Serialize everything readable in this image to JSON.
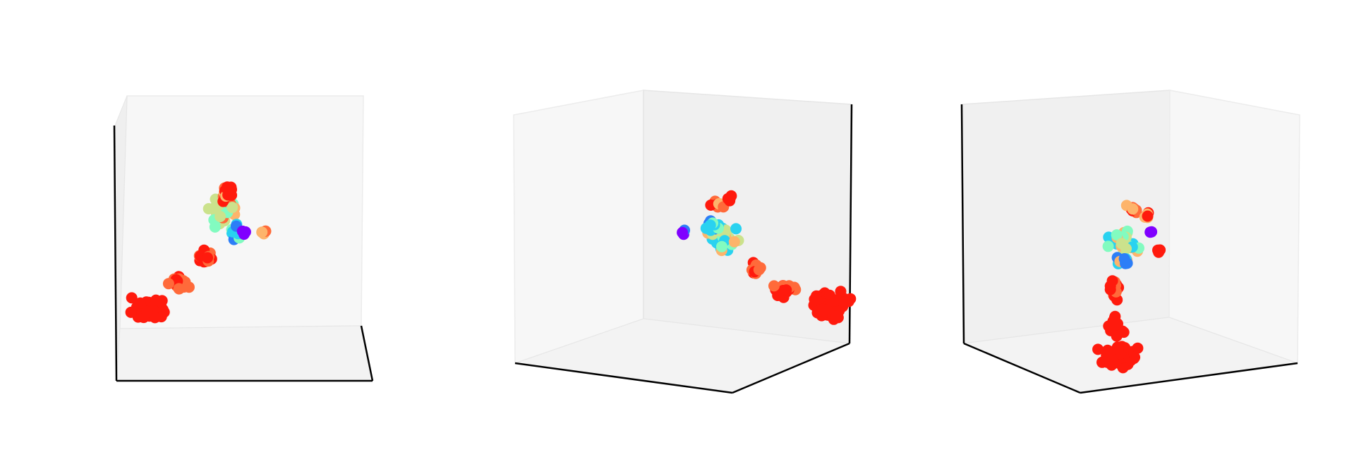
{
  "chart_data": [
    {
      "type": "scatter",
      "view": "front",
      "title": "",
      "xlabel": "",
      "ylabel": "",
      "zlabel": "",
      "axes_ticks_visible": false,
      "grid": false,
      "colormap": "rainbow",
      "series": []
    },
    {
      "type": "scatter",
      "view": "rotated-left",
      "title": "",
      "xlabel": "",
      "ylabel": "",
      "zlabel": "",
      "axes_ticks_visible": false,
      "grid": false,
      "colormap": "rainbow",
      "series": []
    },
    {
      "type": "scatter",
      "view": "rotated-right",
      "title": "",
      "xlabel": "",
      "ylabel": "",
      "zlabel": "",
      "axes_ticks_visible": false,
      "grid": false,
      "colormap": "rainbow",
      "series": []
    }
  ],
  "colors": {
    "pane_light": "#f7f7f7",
    "pane_mid": "#f1f1f1",
    "pane_dark": "#ebebeb",
    "pane_edge": "#e6e6e6",
    "axis_line": "#000000",
    "rainbow": [
      "#8000ff",
      "#2c7ef7",
      "#29d2f0",
      "#82fbc0",
      "#cbe28c",
      "#fdb46b",
      "#ff6a3a",
      "#ff1a0d"
    ]
  }
}
